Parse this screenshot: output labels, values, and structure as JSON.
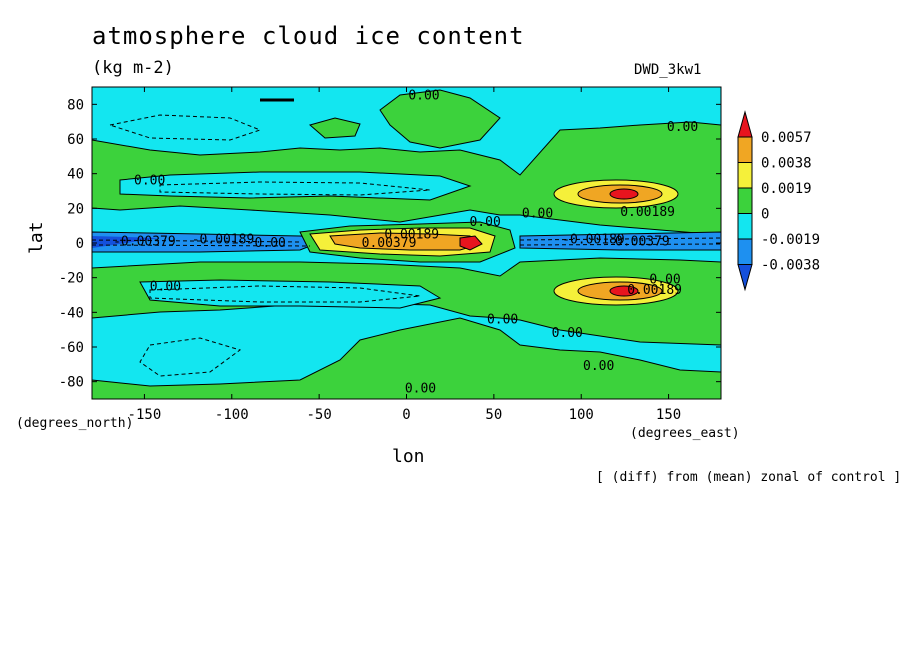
{
  "chart_data": {
    "type": "heatmap",
    "title": "atmosphere cloud ice content",
    "subtitle": "(kg m-2)",
    "model": "DWD_3kw1",
    "footnote": "[ (diff) from (mean) zonal of control ]",
    "xlabel": "lon",
    "ylabel": "lat",
    "x_unit": "(degrees_east)",
    "y_unit": "(degrees_north)",
    "xlim": [
      -180,
      180
    ],
    "ylim": [
      -90,
      90
    ],
    "x_ticks": [
      -150,
      -100,
      -50,
      0,
      50,
      100,
      150
    ],
    "y_ticks": [
      80,
      60,
      40,
      20,
      0,
      -20,
      -40,
      -60,
      -80
    ],
    "legend": {
      "levels": [
        "0.0057",
        "0.0038",
        "0.0019",
        "0",
        "-0.0019",
        "-0.0038"
      ],
      "colors": [
        "#e8141e",
        "#f0a623",
        "#f5f03a",
        "#3cd23c",
        "#13e6f0",
        "#1e90f0",
        "#1450dc"
      ]
    },
    "contour_labels": [
      {
        "text": "0.00",
        "lon": 10,
        "lat": 85
      },
      {
        "text": "0.00",
        "lon": 158,
        "lat": 67
      },
      {
        "text": "0.00",
        "lon": -147,
        "lat": 36
      },
      {
        "text": "0.00",
        "lon": 75,
        "lat": 17
      },
      {
        "text": "0.00",
        "lon": 45,
        "lat": 12
      },
      {
        "text": "0.00189",
        "lon": 138,
        "lat": 18
      },
      {
        "text": "0.00189",
        "lon": 3,
        "lat": 5
      },
      {
        "text": "0.00379",
        "lon": -10,
        "lat": 0
      },
      {
        "text": "-0.00379",
        "lon": -150,
        "lat": 1
      },
      {
        "text": "-0.00189",
        "lon": -105,
        "lat": 2
      },
      {
        "text": "0.00",
        "lon": -78,
        "lat": 0
      },
      {
        "text": "-0.00189",
        "lon": 107,
        "lat": 2
      },
      {
        "text": "0.00379",
        "lon": 135,
        "lat": 1
      },
      {
        "text": "0.00",
        "lon": -138,
        "lat": -25
      },
      {
        "text": "0.00189",
        "lon": 142,
        "lat": -27
      },
      {
        "text": "0.00",
        "lon": 148,
        "lat": -21
      },
      {
        "text": "0.00",
        "lon": 55,
        "lat": -44
      },
      {
        "text": "0.00",
        "lon": 92,
        "lat": -52
      },
      {
        "text": "0.00",
        "lon": 110,
        "lat": -71
      },
      {
        "text": "0.00",
        "lon": 8,
        "lat": -84
      }
    ]
  }
}
